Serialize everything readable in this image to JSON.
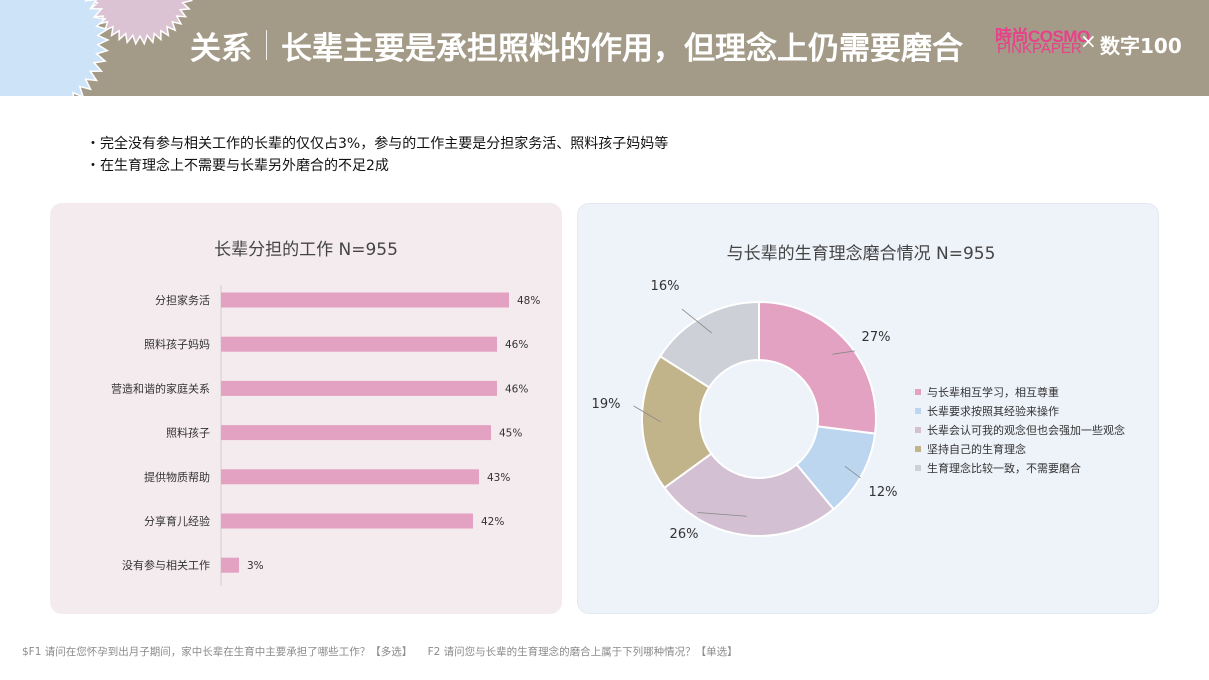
{
  "header": {
    "title_left": "关系",
    "title_main": "长辈主要是承担照料的作用，但理念上仍需要磨合",
    "brand_top": "時尚COSMO",
    "brand_bottom": "PINKPAPER",
    "times": "×",
    "partner": "数字100"
  },
  "bullets": [
    "・完全没有参与相关工作的长辈的仅仅占3%，参与的工作主要是分担家务活、照料孩子妈妈等",
    "・在生育理念上不需要与长辈另外磨合的不足2成"
  ],
  "chart_data": [
    {
      "type": "bar",
      "title": "长辈分担的工作 N=955",
      "orientation": "horizontal",
      "categories": [
        "分担家务活",
        "照料孩子妈妈",
        "营造和谐的家庭关系",
        "照料孩子",
        "提供物质帮助",
        "分享育儿经验",
        "没有参与相关工作"
      ],
      "values": [
        48,
        46,
        46,
        45,
        43,
        42,
        3
      ],
      "labels": [
        "48%",
        "46%",
        "46%",
        "45%",
        "43%",
        "42%",
        "3%"
      ],
      "color": "#e3a2c2",
      "xlim": [
        0,
        50
      ]
    },
    {
      "type": "pie",
      "title": "与长辈的生育理念磨合情况 N=955",
      "donut": true,
      "slices": [
        {
          "label": "与长辈相互学习，相互尊重",
          "value": 27,
          "text": "27%",
          "color": "#e3a2c2"
        },
        {
          "label": "长辈要求按照其经验来操作",
          "value": 12,
          "text": "12%",
          "color": "#bcd6f0"
        },
        {
          "label": "长辈会认可我的观念但也会强加一些观念",
          "value": 26,
          "text": "26%",
          "color": "#d3c1d3"
        },
        {
          "label": "坚持自己的生育理念",
          "value": 19,
          "text": "19%",
          "color": "#c1b38a"
        },
        {
          "label": "生育理念比较一致，不需要磨合",
          "value": 16,
          "text": "16%",
          "color": "#cdd0d6"
        }
      ],
      "legend_position": "right"
    }
  ],
  "footer": {
    "note1": "$F1 请问在您怀孕到出月子期间，家中长辈在生育中主要承担了哪些工作？【多选】",
    "note2": "F2 请问您与长辈的生育理念的磨合上属于下列哪种情况？【单选】"
  }
}
